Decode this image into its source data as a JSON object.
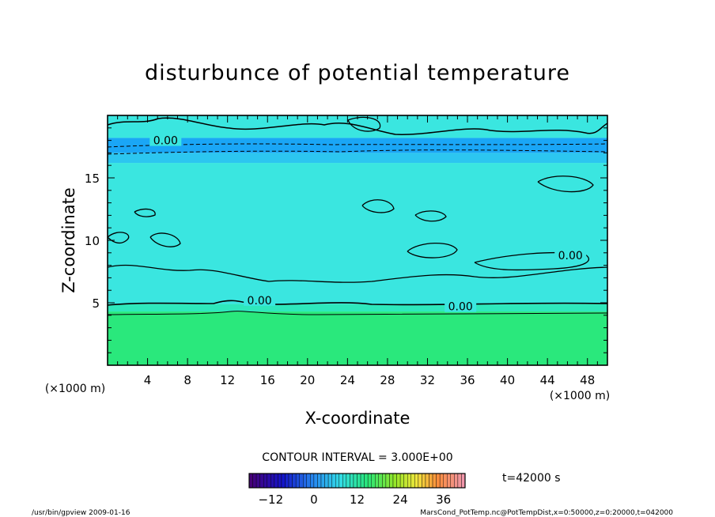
{
  "chart_data": {
    "type": "contour",
    "title": "disturbunce of potential temperature",
    "xlabel": "X-coordinate",
    "ylabel": "Z-coordinate",
    "x_unit_label": "(×1000 m)",
    "y_unit_label": "(×1000 m)",
    "xlim": [
      0,
      50
    ],
    "ylim": [
      0,
      20
    ],
    "x_ticks": [
      4,
      8,
      12,
      16,
      20,
      24,
      28,
      32,
      36,
      40,
      44,
      48
    ],
    "y_ticks": [
      5,
      10,
      15
    ],
    "contour_labels": [
      {
        "text": "0.00",
        "x": 5.8,
        "z": 18.0
      },
      {
        "text": "0.00",
        "x": 15.2,
        "z": 5.2
      },
      {
        "text": "0.00",
        "x": 35.3,
        "z": 4.7
      },
      {
        "text": "0.00",
        "x": 46.3,
        "z": 8.8
      }
    ],
    "contour_interval_text": "CONTOUR INTERVAL = 3.000E+00",
    "colorbar": {
      "ticks": [
        -12,
        0,
        12,
        24,
        36
      ],
      "range": [
        -18,
        42
      ]
    },
    "time_label": "t=42000 s",
    "bands": [
      {
        "z0": 0,
        "z1": 4.3,
        "level": 6,
        "color": "#2ae87c"
      },
      {
        "z0": 4.3,
        "z1": 4.9,
        "level": 3,
        "color": "#2ee8bc"
      },
      {
        "z0": 4.9,
        "z1": 16.2,
        "level": 0,
        "color": "#3ae6e0"
      },
      {
        "z0": 16.2,
        "z1": 17.0,
        "level": -3,
        "color": "#2cc6f0"
      },
      {
        "z0": 17.0,
        "z1": 18.2,
        "level": -6,
        "color": "#1aa6f6"
      },
      {
        "z0": 18.2,
        "z1": 20,
        "level": 0,
        "color": "#3ae6e0"
      }
    ]
  },
  "footer": {
    "left": "/usr/bin/gpview  2009-01-16",
    "right": "MarsCond_PotTemp.nc@PotTempDist,x=0:50000,z=0:20000,t=042000"
  }
}
